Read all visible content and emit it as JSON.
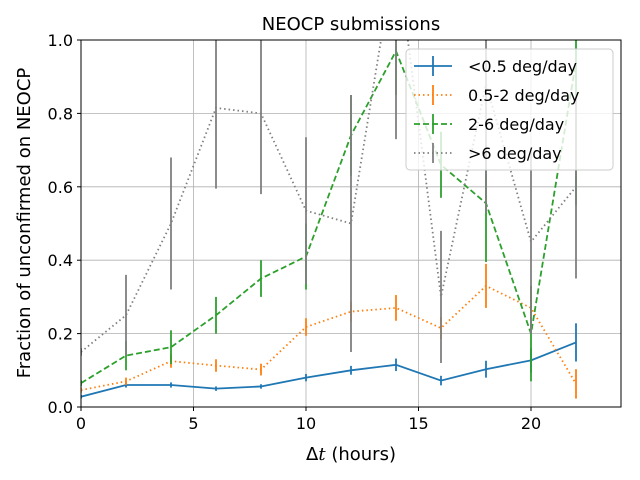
{
  "chart_data": {
    "type": "line",
    "title": "NEOCP submissions",
    "xlabel_prefix": "Δ",
    "xlabel_var": "t",
    "xlabel_suffix": " (hours)",
    "ylabel": "Fraction of unconfirmed on NEOCP",
    "xlim": [
      0,
      24
    ],
    "ylim": [
      0,
      1.0
    ],
    "xticks": [
      0,
      5,
      10,
      15,
      20
    ],
    "yticks": [
      0.0,
      0.2,
      0.4,
      0.6,
      0.8,
      1.0
    ],
    "ytick_labels": [
      "0.0",
      "0.2",
      "0.4",
      "0.6",
      "0.8",
      "1.0"
    ],
    "grid": true,
    "legend_position": "top-right",
    "x": [
      0,
      2,
      4,
      6,
      8,
      10,
      12,
      14,
      16,
      18,
      20,
      22
    ],
    "series": [
      {
        "name": "<0.5 deg/day",
        "color": "#1f77b4",
        "dash": "solid",
        "values": [
          0.028,
          0.06,
          0.06,
          0.05,
          0.056,
          0.08,
          0.1,
          0.115,
          0.072,
          0.103,
          0.127,
          0.176
        ],
        "errors": [
          0.005,
          0.007,
          0.007,
          0.006,
          0.006,
          0.01,
          0.012,
          0.017,
          0.013,
          0.023,
          0.033,
          0.052
        ]
      },
      {
        "name": "0.5-2 deg/day",
        "color": "#ff7f0e",
        "dash": "dotted",
        "values": [
          0.046,
          0.07,
          0.125,
          0.113,
          0.102,
          0.218,
          0.26,
          0.27,
          0.215,
          0.33,
          0.27,
          0.063
        ],
        "errors": [
          0.007,
          0.01,
          0.018,
          0.017,
          0.016,
          0.024,
          0.027,
          0.035,
          0.03,
          0.06,
          0.06,
          0.04
        ]
      },
      {
        "name": "2-6 deg/day",
        "color": "#2ca02c",
        "dash": "dashed",
        "values": [
          0.065,
          0.14,
          0.163,
          0.25,
          0.35,
          0.41,
          0.74,
          0.97,
          0.66,
          0.555,
          0.2,
          0.94
        ],
        "errors": [
          0.008,
          0.04,
          0.046,
          0.05,
          0.05,
          0.09,
          0.11,
          0.12,
          0.09,
          0.16,
          0.13,
          0.39
        ]
      },
      {
        "name": ">6 deg/day",
        "color": "#7f7f7f",
        "dash": "dotted",
        "values": [
          0.15,
          0.25,
          0.5,
          0.815,
          0.8,
          0.535,
          0.5,
          1.25,
          0.3,
          0.88,
          0.45,
          0.6
        ],
        "errors": [
          0.01,
          0.11,
          0.18,
          0.22,
          0.22,
          0.2,
          0.35,
          0.52,
          0.18,
          0.35,
          0.25,
          0.25
        ]
      }
    ]
  }
}
